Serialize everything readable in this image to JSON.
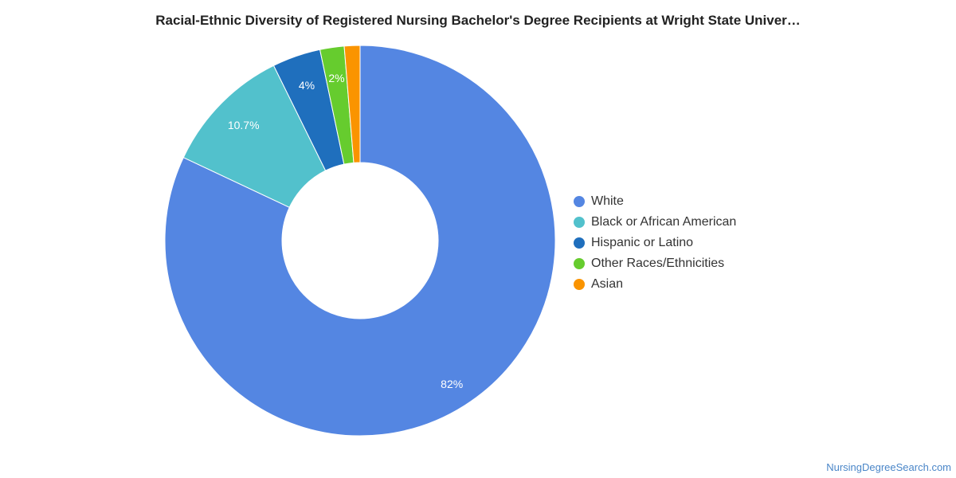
{
  "chart_data": {
    "type": "pie",
    "title": "Racial-Ethnic Diversity of Registered Nursing Bachelor's Degree Recipients at Wright State Univer…",
    "categories": [
      "White",
      "Black or African American",
      "Hispanic or Latino",
      "Other Races/Ethnicities",
      "Asian"
    ],
    "values": [
      82,
      10.7,
      4,
      2,
      1.3
    ],
    "data_labels": [
      "82%",
      "10.7%",
      "4%",
      "2%",
      ""
    ],
    "colors": [
      "#5486e2",
      "#52c1cc",
      "#1f6fbd",
      "#66cc2e",
      "#fa9400"
    ],
    "legend": "right",
    "donut": true
  },
  "footer": {
    "source": "NursingDegreeSearch.com"
  }
}
